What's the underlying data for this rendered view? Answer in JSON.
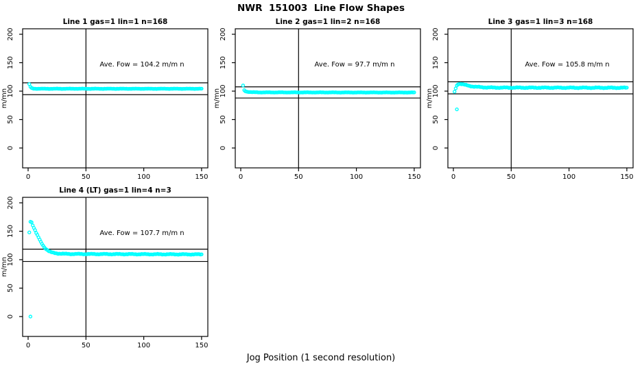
{
  "figure": {
    "title": "NWR  151003  Line Flow Shapes",
    "xlabel": "Jog Position (1 second resolution)",
    "background": "#FFFFFF",
    "marker_color": "#00FFFF",
    "axis_color": "#000000"
  },
  "chart_data": [
    {
      "type": "scatter",
      "title": "Line 1 gas=1 lin=1 n=168",
      "annotation": "Ave. Fow =  104.2  m/m n",
      "ave_flow": 104.2,
      "n": 168,
      "ylabel": "m/mn",
      "x_ticks": [
        0,
        50,
        100,
        150
      ],
      "y_ticks": [
        0,
        50,
        100,
        150,
        200
      ],
      "xlim": [
        0,
        155
      ],
      "ylim": [
        0,
        210
      ],
      "vline_x": 50,
      "hlines": [
        114.6,
        93.8
      ],
      "points_spec": {
        "control_points": [
          [
            1,
            112
          ],
          [
            2,
            107.5
          ],
          [
            3,
            105.3
          ],
          [
            5,
            104.4
          ],
          [
            8,
            104.2
          ],
          [
            150,
            104.2
          ]
        ],
        "x_step": 1,
        "jitter": 0.35,
        "seed": 1
      },
      "outliers": []
    },
    {
      "type": "scatter",
      "title": "Line 2 gas=1 lin=2 n=168",
      "annotation": "Ave. Fow =  97.7  m/m n",
      "ave_flow": 97.7,
      "n": 168,
      "ylabel": "m/mn",
      "x_ticks": [
        0,
        50,
        100,
        150
      ],
      "y_ticks": [
        0,
        50,
        100,
        150,
        200
      ],
      "xlim": [
        0,
        155
      ],
      "ylim": [
        0,
        210
      ],
      "vline_x": 50,
      "hlines": [
        107.5,
        87.9
      ],
      "points_spec": {
        "control_points": [
          [
            3,
            101.5
          ],
          [
            4,
            100
          ],
          [
            6,
            98.8
          ],
          [
            10,
            98.1
          ],
          [
            18,
            97.8
          ],
          [
            150,
            97.6
          ]
        ],
        "x_step": 1,
        "jitter": 0.35,
        "seed": 2
      },
      "outliers": [
        [
          2,
          110
        ]
      ]
    },
    {
      "type": "scatter",
      "title": "Line 3 gas=1 lin=3 n=168",
      "annotation": "Ave. Fow =  105.8  m/m n",
      "ave_flow": 105.8,
      "n": 168,
      "ylabel": "m/mn",
      "x_ticks": [
        0,
        50,
        100,
        150
      ],
      "y_ticks": [
        0,
        50,
        100,
        150,
        200
      ],
      "xlim": [
        0,
        155
      ],
      "ylim": [
        0,
        210
      ],
      "vline_x": 50,
      "hlines": [
        116.4,
        95.2
      ],
      "points_spec": {
        "control_points": [
          [
            1,
            99
          ],
          [
            2,
            105
          ],
          [
            3,
            110
          ],
          [
            4,
            112.5
          ],
          [
            6,
            113
          ],
          [
            8,
            112
          ],
          [
            12,
            110
          ],
          [
            16,
            108.5
          ],
          [
            20,
            107.5
          ],
          [
            25,
            106.8
          ],
          [
            35,
            106.2
          ],
          [
            150,
            105.9
          ]
        ],
        "x_step": 1,
        "jitter": 0.8,
        "seed": 3
      },
      "outliers": [
        [
          3,
          68
        ]
      ]
    },
    {
      "type": "scatter",
      "title": "Line 4 (LT) gas=1 lin=4 n=3",
      "annotation": "Ave. Fow =  107.7  m/m n",
      "ave_flow": 107.7,
      "n": 3,
      "ylabel": "m/mn",
      "x_ticks": [
        0,
        50,
        100,
        150
      ],
      "y_ticks": [
        0,
        50,
        100,
        150,
        200
      ],
      "xlim": [
        0,
        155
      ],
      "ylim": [
        0,
        210
      ],
      "vline_x": 50,
      "hlines": [
        118.5,
        96.9
      ],
      "points_spec": {
        "control_points": [
          [
            2,
            167
          ],
          [
            3,
            166
          ],
          [
            4,
            161
          ],
          [
            5,
            156
          ],
          [
            6,
            152
          ],
          [
            7,
            147
          ],
          [
            8,
            143
          ],
          [
            9,
            139
          ],
          [
            10,
            135
          ],
          [
            11,
            131
          ],
          [
            12,
            128
          ],
          [
            13,
            125
          ],
          [
            14,
            122
          ],
          [
            15,
            120
          ],
          [
            16,
            118
          ],
          [
            17,
            116.5
          ],
          [
            18,
            115
          ],
          [
            19,
            114
          ],
          [
            20,
            113
          ],
          [
            22,
            112
          ],
          [
            25,
            111
          ],
          [
            30,
            110.3
          ],
          [
            40,
            110
          ],
          [
            150,
            109.3
          ]
        ],
        "x_step": 1,
        "jitter": 0.7,
        "seed": 4
      },
      "outliers": [
        [
          1,
          148
        ],
        [
          2,
          0
        ]
      ]
    }
  ]
}
